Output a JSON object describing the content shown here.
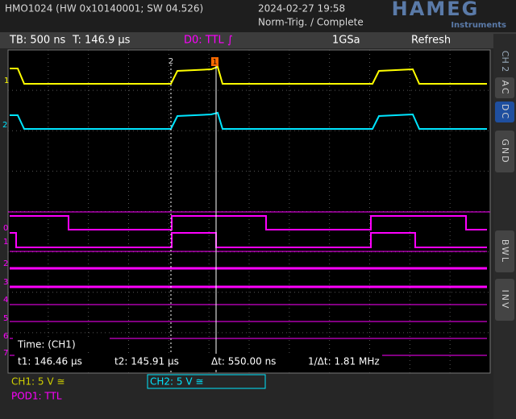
{
  "header": {
    "device": "HMO1024 (HW 0x10140001; SW 04.526)",
    "datetime": "2024-02-27 19:58",
    "trigger_state": "Norm-Trig. / Complete",
    "logo": "HAMEG",
    "logo_sub": "Instruments"
  },
  "status_bar": {
    "timebase": "TB: 500 ns",
    "trigger_time": "T: 146.9 µs",
    "trigger_source": "D0: TTL ∫",
    "sample_rate": "1GSa",
    "mode": "Refresh"
  },
  "side_menu": {
    "channel": "CH 2",
    "buttons": [
      "AC",
      "DC",
      "GND",
      "BWL",
      "INV"
    ]
  },
  "markers": {
    "ch1": "1",
    "ch2": "2",
    "cursor2": "2",
    "cursor1": "1",
    "digital": [
      "0",
      "1",
      "2",
      "3",
      "4",
      "5",
      "6",
      "7"
    ]
  },
  "cursor_readout": {
    "title": "Time: (CH1)",
    "t1": "t1: 146.46 µs",
    "t2": "t2: 145.91 µs",
    "delta": "Δt: 550.00 ns",
    "freq": "1/Δt: 1.81 MHz"
  },
  "channel_info": {
    "ch1": "CH1: 5 V ≅",
    "ch2": "CH2: 5 V ≅",
    "pod1": "POD1: TTL"
  }
}
